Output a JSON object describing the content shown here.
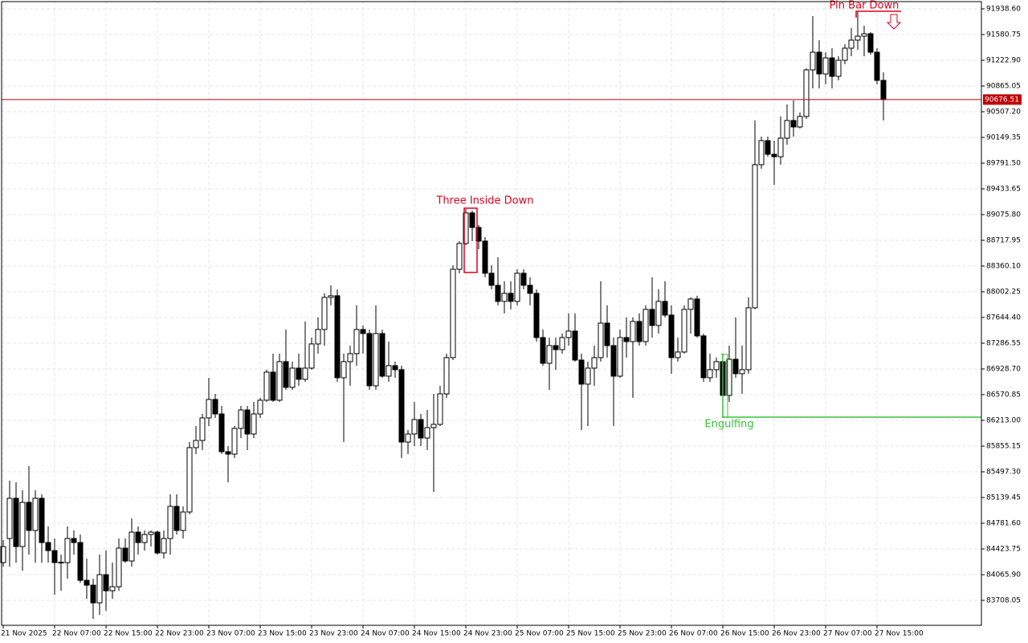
{
  "chart_data": {
    "type": "candlestick",
    "categories": [
      "21 Nov 2025",
      null,
      null,
      null,
      null,
      null,
      null,
      null,
      "22 Nov 07:00",
      null,
      null,
      null,
      null,
      null,
      null,
      null,
      "22 Nov 15:00",
      null,
      null,
      null,
      null,
      null,
      null,
      null,
      "22 Nov 23:00",
      null,
      null,
      null,
      null,
      null,
      null,
      null,
      "23 Nov 07:00",
      null,
      null,
      null,
      null,
      null,
      null,
      null,
      "23 Nov 15:00",
      null,
      null,
      null,
      null,
      null,
      null,
      null,
      "23 Nov 23:00",
      null,
      null,
      null,
      null,
      null,
      null,
      null,
      "24 Nov 07:00",
      null,
      null,
      null,
      null,
      null,
      null,
      null,
      "24 Nov 15:00",
      null,
      null,
      null,
      null,
      null,
      null,
      null,
      "24 Nov 23:00",
      null,
      null,
      null,
      null,
      null,
      null,
      null,
      "25 Nov 07:00",
      null,
      null,
      null,
      null,
      null,
      null,
      null,
      "25 Nov 15:00",
      null,
      null,
      null,
      null,
      null,
      null,
      null,
      "25 Nov 23:00",
      null,
      null,
      null,
      null,
      null,
      null,
      null,
      "26 Nov 07:00",
      null,
      null,
      null,
      null,
      null,
      null,
      null,
      "26 Nov 15:00",
      null,
      null,
      null,
      null,
      null,
      null,
      null,
      "26 Nov 23:00",
      null,
      null,
      null,
      null,
      null,
      null,
      null,
      "27 Nov 07:00",
      null,
      null,
      null,
      null,
      null,
      null,
      null,
      "27 Nov 15:00",
      null
    ],
    "open": [
      84234,
      84569,
      85128,
      84457,
      85072,
      84681,
      85128,
      84513,
      84401,
      84234,
      84234,
      84569,
      84513,
      83987,
      83920,
      83674,
      84066,
      83842,
      83898,
      84435,
      84256,
      84658,
      84513,
      84625,
      84658,
      84368,
      84569,
      85016,
      84681,
      84938,
      85833,
      85933,
      86247,
      86504,
      86302,
      85777,
      85743,
      86101,
      86358,
      86023,
      86302,
      86493,
      86884,
      86493,
      87030,
      86672,
      86940,
      86784,
      86940,
      87276,
      87477,
      87924,
      87947,
      86806,
      87030,
      87141,
      87477,
      87421,
      86694,
      87421,
      86828,
      86974,
      86918,
      85911,
      86023,
      86224,
      85967,
      86112,
      86157,
      86582,
      87086,
      88315,
      88674,
      89099,
      88897,
      88707,
      88260,
      88092,
      87868,
      87980,
      87868,
      88260,
      88092,
      87980,
      87365,
      87007,
      87253,
      87197,
      87365,
      87455,
      87052,
      86717,
      86940,
      87086,
      87566,
      87253,
      86828,
      87365,
      87309,
      87589,
      87309,
      87757,
      87533,
      87868,
      87678,
      87086,
      87164,
      87757,
      87902,
      87388,
      86806,
      86918,
      87030,
      86560,
      87063,
      86862,
      86918,
      87779,
      89770,
      90105,
      89915,
      89881,
      90139,
      90385,
      90295,
      90441,
      91089,
      91335,
      91033,
      91256,
      90999,
      91223,
      91391,
      91503,
      91558,
      91592,
      91335,
      90943
    ],
    "high": [
      84547,
      85374,
      85352,
      85240,
      85576,
      85240,
      85184,
      84737,
      84569,
      84345,
      84737,
      84681,
      84625,
      84289,
      84010,
      84345,
      84401,
      84234,
      84569,
      84569,
      84849,
      84737,
      84681,
      84681,
      84681,
      84681,
      85184,
      85184,
      85016,
      85911,
      86135,
      86302,
      86806,
      86582,
      86414,
      85855,
      86135,
      86414,
      86414,
      86470,
      86526,
      86918,
      87141,
      87141,
      87477,
      87030,
      87141,
      87589,
      87365,
      87645,
      87980,
      88092,
      88036,
      87141,
      87253,
      87813,
      87533,
      87477,
      87813,
      87477,
      87309,
      87030,
      86974,
      86079,
      86470,
      86302,
      86358,
      86582,
      86694,
      87141,
      88371,
      88707,
      89154,
      89132,
      88931,
      88763,
      88371,
      88483,
      88148,
      88148,
      88315,
      88315,
      88204,
      88036,
      87477,
      87365,
      87365,
      87421,
      87701,
      87701,
      87141,
      87030,
      87253,
      88148,
      87813,
      87365,
      87477,
      87645,
      87645,
      87701,
      87813,
      88204,
      88036,
      88148,
      87813,
      87365,
      87813,
      87924,
      87947,
      87421,
      87141,
      87086,
      87141,
      87253,
      87645,
      87253,
      87924,
      90385,
      90161,
      90161,
      90105,
      90441,
      90608,
      90664,
      90496,
      91111,
      91838,
      91503,
      91335,
      91391,
      91279,
      91446,
      91670,
      91905,
      91704,
      91614,
      91391,
      91055
    ],
    "low": [
      84178,
      84178,
      84234,
      84122,
      84345,
      84234,
      84234,
      84234,
      83786,
      83842,
      84010,
      84345,
      83954,
      83730,
      83451,
      83506,
      83562,
      83730,
      83842,
      84234,
      84178,
      84345,
      84401,
      84457,
      84345,
      84289,
      84345,
      84625,
      84569,
      84905,
      85743,
      85799,
      86135,
      86247,
      85743,
      85352,
      85688,
      85967,
      85799,
      85967,
      86247,
      86470,
      86470,
      86470,
      86638,
      86638,
      86694,
      86750,
      86918,
      87141,
      87253,
      87813,
      86750,
      85911,
      86694,
      86974,
      87141,
      86638,
      86638,
      86806,
      86750,
      86806,
      85688,
      85743,
      85855,
      85855,
      85799,
      85218,
      86135,
      86526,
      87052,
      88260,
      88650,
      88707,
      88595,
      88204,
      88036,
      87813,
      87701,
      87757,
      87813,
      88036,
      87813,
      87309,
      86974,
      86638,
      86918,
      87141,
      87253,
      87030,
      86079,
      86135,
      86694,
      87030,
      87086,
      86135,
      86806,
      87086,
      86526,
      87253,
      87253,
      87365,
      87421,
      87645,
      86862,
      87030,
      87141,
      87421,
      87365,
      86750,
      86750,
      86806,
      86247,
      86470,
      86806,
      86582,
      86862,
      87757,
      89713,
      89881,
      89489,
      89770,
      90049,
      90161,
      90273,
      90407,
      90832,
      90832,
      90888,
      90832,
      90943,
      91167,
      91279,
      91368,
      91279,
      91301,
      90888,
      90385
    ],
    "close": [
      84457,
      85128,
      84457,
      85072,
      84681,
      85128,
      84513,
      84401,
      84234,
      84240,
      84569,
      84513,
      83987,
      83920,
      83674,
      84066,
      83842,
      83898,
      84435,
      84256,
      84658,
      84513,
      84625,
      84658,
      84368,
      84569,
      85016,
      84681,
      84938,
      85833,
      85933,
      86247,
      86504,
      86302,
      85777,
      85743,
      86101,
      86358,
      86023,
      86302,
      86493,
      86884,
      86493,
      87030,
      86672,
      86940,
      86784,
      86940,
      87276,
      87477,
      87924,
      87947,
      86806,
      87030,
      87141,
      87477,
      87421,
      86694,
      87421,
      86828,
      86974,
      86918,
      85911,
      86023,
      86224,
      85967,
      86112,
      86157,
      86582,
      87086,
      88315,
      88674,
      89099,
      88897,
      88707,
      88260,
      88092,
      87868,
      87980,
      87868,
      88260,
      88092,
      87980,
      87365,
      87007,
      87253,
      87197,
      87365,
      87455,
      87052,
      86717,
      86940,
      87086,
      87566,
      87253,
      86828,
      87365,
      87309,
      87589,
      87309,
      87757,
      87533,
      87868,
      87678,
      87086,
      87164,
      87757,
      87902,
      87388,
      86806,
      86918,
      87030,
      86560,
      87063,
      86862,
      86918,
      87779,
      89770,
      90105,
      89915,
      89881,
      90139,
      90385,
      90295,
      90441,
      91089,
      91335,
      91033,
      91256,
      90999,
      91223,
      91391,
      91503,
      91558,
      91592,
      91335,
      90943,
      90676.51
    ],
    "up_color": "#ffffff",
    "down_color": "#000000",
    "ylim": [
      83361.2,
      92039.2
    ],
    "yticks": [
      {
        "value": 91938.6,
        "label": "91938.60"
      },
      91580.75,
      {
        "value": 91222.9,
        "label": "91222.90"
      },
      90865.05,
      {
        "value": 90507.2,
        "label": "90507.20"
      },
      90149.35,
      {
        "value": 89791.5,
        "label": "89791.50"
      },
      89433.65,
      {
        "value": 89075.8,
        "label": "89075.80"
      },
      88717.95,
      {
        "value": 88360.1,
        "label": "88360.10"
      },
      88002.25,
      {
        "value": 87644.4,
        "label": "87644.40"
      },
      87286.55,
      {
        "value": 86928.7,
        "label": "86928.70"
      },
      86570.85,
      {
        "value": 86213,
        "label": "86213.00"
      },
      85855.15,
      {
        "value": 85497.3,
        "label": "85497.30"
      },
      85139.45,
      {
        "value": 84781.6,
        "label": "84781.60"
      },
      84423.75,
      {
        "value": 84065.9,
        "label": "84065.90"
      },
      83708.05
    ],
    "grid": true,
    "current_price": 90676.51,
    "current_price_color": "#c00000",
    "annotations": [
      {
        "text": "Three Inside Down",
        "color": "#e0001b"
      },
      {
        "text": "Pin Bar Down",
        "color": "#e0001b"
      },
      {
        "text": "Engulfing",
        "color": "#33c433"
      }
    ]
  }
}
